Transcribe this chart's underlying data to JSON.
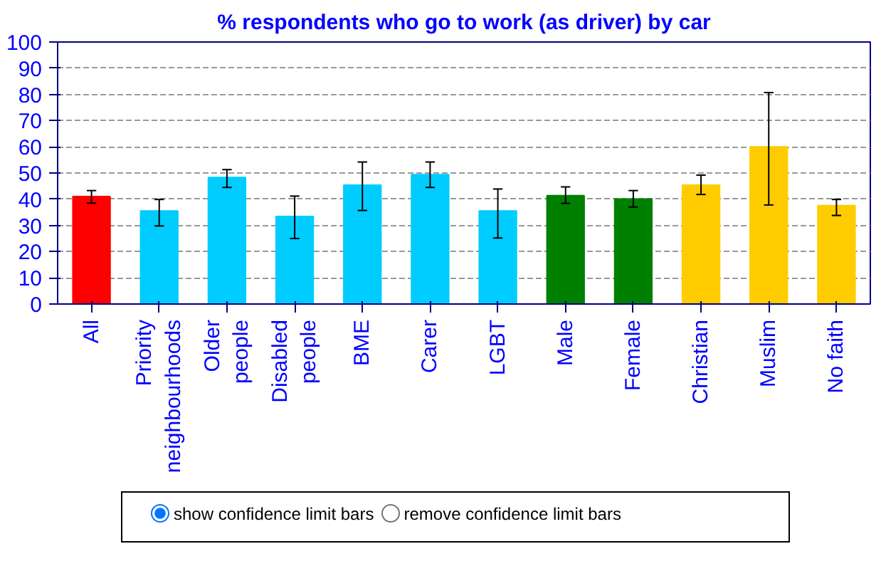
{
  "chart_data": {
    "type": "bar",
    "title": "% respondents who go to work (as driver) by car",
    "categories": [
      "All",
      "Priority\nneighbourhoods",
      "Older\npeople",
      "Disabled\npeople",
      "BME",
      "Carer",
      "LGBT",
      "Male",
      "Female",
      "Christian",
      "Muslim",
      "No faith"
    ],
    "values": [
      41,
      35.5,
      48.3,
      33.4,
      45.4,
      49.4,
      35.5,
      41.4,
      40.1,
      45.4,
      60,
      37.6
    ],
    "colors": [
      "#ff0000",
      "#00ccff",
      "#00ccff",
      "#00ccff",
      "#00ccff",
      "#00ccff",
      "#00ccff",
      "#008000",
      "#008000",
      "#ffcc00",
      "#ffcc00",
      "#ffcc00"
    ],
    "errors": [
      [
        38.5,
        43.3
      ],
      [
        29.8,
        39.9
      ],
      [
        44.5,
        51.3
      ],
      [
        25,
        41.2
      ],
      [
        35.7,
        54.2
      ],
      [
        44.5,
        54.2
      ],
      [
        25.2,
        43.9
      ],
      [
        38.4,
        44.7
      ],
      [
        37,
        43.3
      ],
      [
        41.8,
        49.2
      ],
      [
        37.8,
        80.7
      ],
      [
        33.8,
        39.9
      ]
    ],
    "ylim": [
      0,
      100
    ],
    "yticks": [
      0,
      10,
      20,
      30,
      40,
      50,
      60,
      70,
      80,
      90,
      100
    ],
    "grid": "y",
    "annotations": [
      "show confidence limit  bars",
      "remove confidence limit  bars"
    ]
  }
}
